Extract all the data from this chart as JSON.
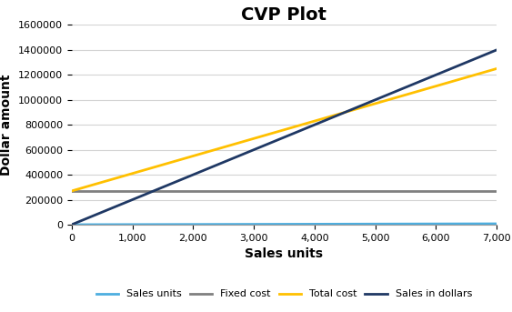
{
  "title": "CVP Plot",
  "xlabel": "Sales units",
  "ylabel": "Dollar amount",
  "xlim": [
    0,
    7000
  ],
  "ylim": [
    0,
    1600000
  ],
  "xticks": [
    0,
    1000,
    2000,
    3000,
    4000,
    5000,
    6000,
    7000
  ],
  "yticks": [
    0,
    200000,
    400000,
    600000,
    800000,
    1000000,
    1200000,
    1400000,
    1600000
  ],
  "lines": {
    "sales_units": {
      "x": [
        0,
        7000
      ],
      "y": [
        0,
        7000
      ],
      "color": "#4DAEDF",
      "label": "Sales units",
      "linewidth": 2.0
    },
    "fixed_cost": {
      "x": [
        0,
        7000
      ],
      "y": [
        270000,
        270000
      ],
      "color": "#808080",
      "label": "Fixed cost",
      "linewidth": 2.0
    },
    "total_cost": {
      "x": [
        0,
        7000
      ],
      "y": [
        270000,
        1250000
      ],
      "color": "#FFC000",
      "label": "Total cost",
      "linewidth": 2.0
    },
    "sales_in_dollars": {
      "x": [
        0,
        7000
      ],
      "y": [
        0,
        1400000
      ],
      "color": "#1F3864",
      "label": "Sales in dollars",
      "linewidth": 2.0
    }
  },
  "background_color": "#FFFFFF",
  "grid_color": "#D3D3D3",
  "title_fontsize": 14,
  "axis_label_fontsize": 10,
  "tick_fontsize": 8,
  "legend_fontsize": 8
}
